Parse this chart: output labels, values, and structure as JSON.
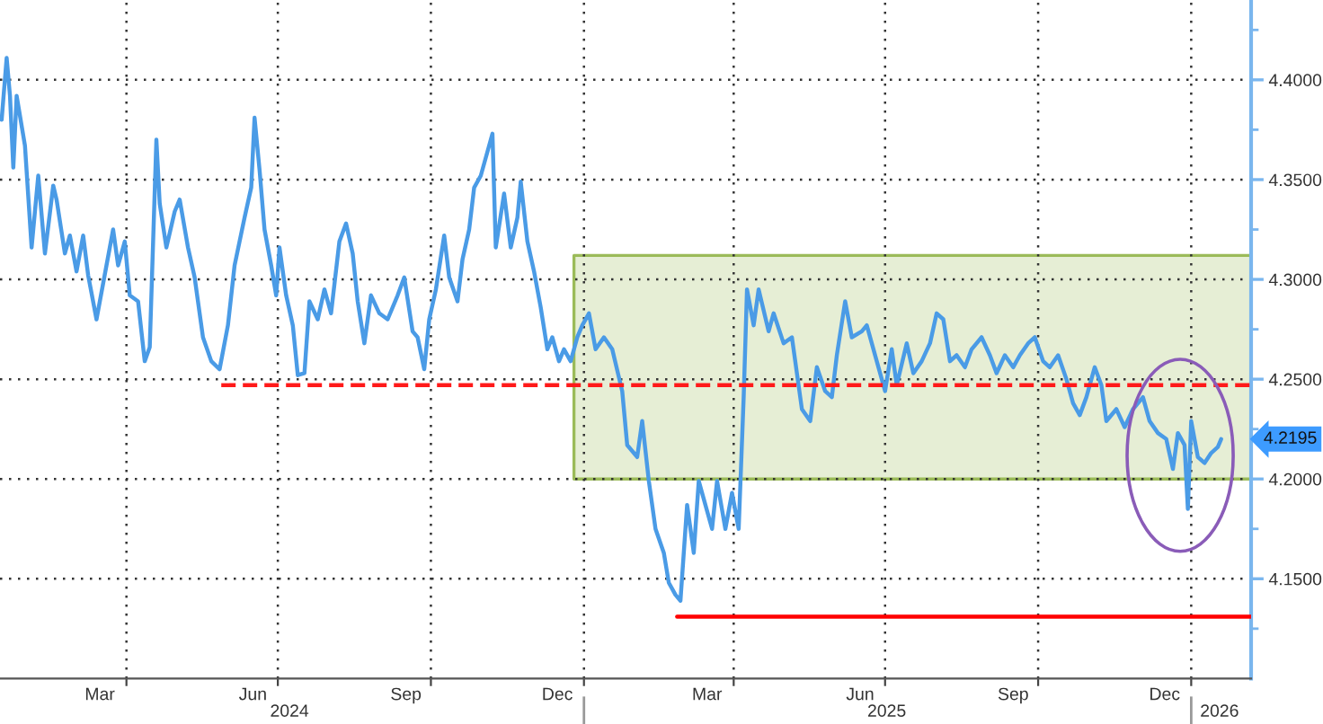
{
  "chart_data": {
    "type": "line",
    "xlim": [
      "2024-01-16",
      "2026-02-06"
    ],
    "xticks": [
      {
        "value": "2024-04-01",
        "label": null
      },
      {
        "value": "2024-07-01",
        "label": null
      },
      {
        "value": "2024-10-01",
        "label": null
      },
      {
        "value": "2025-01-01",
        "label": null
      },
      {
        "value": "2025-04-01",
        "label": null
      },
      {
        "value": "2025-07-01",
        "label": null
      },
      {
        "value": "2025-10-01",
        "label": null
      },
      {
        "value": "2026-01-01",
        "label": null
      },
      {
        "value": "2024-03-16",
        "label": "Mar"
      },
      {
        "value": "2024-06-16",
        "label": "Jun"
      },
      {
        "value": "2024-09-16",
        "label": "Sep"
      },
      {
        "value": "2024-12-16",
        "label": "Dec"
      },
      {
        "value": "2025-03-16",
        "label": "Mar"
      },
      {
        "value": "2025-06-16",
        "label": "Jun"
      },
      {
        "value": "2025-09-16",
        "label": "Sep"
      },
      {
        "value": "2025-12-16",
        "label": "Dec"
      }
    ],
    "x2lim": [
      "2024-01-16",
      "2026-02-06"
    ],
    "x2ticks": [
      {
        "value": "2025-01-01",
        "label": null
      },
      {
        "value": "2026-01-01",
        "label": null
      },
      {
        "value": "2024-07-08",
        "label": "2024"
      },
      {
        "value": "2025-07-02",
        "label": "2025"
      },
      {
        "value": "2026-01-18",
        "label": "2026"
      }
    ],
    "ylim": [
      4.1,
      4.44
    ],
    "yticks": [
      {
        "value": 4.15,
        "label": "4.1500"
      },
      {
        "value": 4.2,
        "label": "4.2000"
      },
      {
        "value": 4.25,
        "label": "4.2500"
      },
      {
        "value": 4.3,
        "label": "4.3000"
      },
      {
        "value": 4.35,
        "label": "4.3500"
      },
      {
        "value": 4.4,
        "label": "4.4000"
      },
      {
        "value": 4.125,
        "label": null
      },
      {
        "value": 4.175,
        "label": null
      },
      {
        "value": 4.225,
        "label": null
      },
      {
        "value": 4.275,
        "label": null
      },
      {
        "value": 4.325,
        "label": null
      },
      {
        "value": 4.375,
        "label": null
      },
      {
        "value": 4.425,
        "label": null
      }
    ],
    "grid": true,
    "annotations": [
      "4.2195"
    ],
    "series": [
      {
        "type": "line",
        "color": "#9bbb59",
        "x": [
          "2024-12-26",
          "2026-02-06"
        ],
        "values": [
          null,
          null
        ],
        "lower": [
          4.2,
          4.2
        ],
        "upper": [
          4.312,
          4.312
        ]
      },
      {
        "color": "#4a9be6",
        "x": [
          "2024-01-17",
          "2024-01-20",
          "2024-01-22",
          "2024-01-24",
          "2024-01-26",
          "2024-01-31",
          "2024-02-04",
          "2024-02-08",
          "2024-02-12",
          "2024-02-17",
          "2024-02-19",
          "2024-02-24",
          "2024-02-27",
          "2024-03-02",
          "2024-03-06",
          "2024-03-09",
          "2024-03-14",
          "2024-03-18",
          "2024-03-24",
          "2024-03-27",
          "2024-03-31",
          "2024-04-03",
          "2024-04-08",
          "2024-04-12",
          "2024-04-15",
          "2024-04-19",
          "2024-04-21",
          "2024-04-25",
          "2024-04-30",
          "2024-05-03",
          "2024-05-08",
          "2024-05-12",
          "2024-05-17",
          "2024-05-22",
          "2024-05-27",
          "2024-06-01",
          "2024-06-05",
          "2024-06-11",
          "2024-06-15",
          "2024-06-17",
          "2024-06-20",
          "2024-06-23",
          "2024-06-27",
          "2024-06-30",
          "2024-07-02",
          "2024-07-06",
          "2024-07-10",
          "2024-07-13",
          "2024-07-17",
          "2024-07-20",
          "2024-07-25",
          "2024-07-29",
          "2024-08-02",
          "2024-08-07",
          "2024-08-11",
          "2024-08-15",
          "2024-08-18",
          "2024-08-22",
          "2024-08-26",
          "2024-08-31",
          "2024-09-05",
          "2024-09-11",
          "2024-09-15",
          "2024-09-20",
          "2024-09-23",
          "2024-09-27",
          "2024-09-30",
          "2024-10-04",
          "2024-10-09",
          "2024-10-12",
          "2024-10-17",
          "2024-10-20",
          "2024-10-24",
          "2024-10-27",
          "2024-10-31",
          "2024-11-03",
          "2024-11-07",
          "2024-11-09",
          "2024-11-14",
          "2024-11-18",
          "2024-11-22",
          "2024-11-24",
          "2024-11-28",
          "2024-12-02",
          "2024-12-06",
          "2024-12-10",
          "2024-12-13",
          "2024-12-17",
          "2024-12-20",
          "2024-12-24",
          "2024-12-28",
          "2024-12-31",
          "2025-01-04",
          "2025-01-08",
          "2025-01-13",
          "2025-01-18",
          "2025-01-24",
          "2025-01-27",
          "2025-02-02",
          "2025-02-05",
          "2025-02-09",
          "2025-02-13",
          "2025-02-18",
          "2025-02-21",
          "2025-02-25",
          "2025-02-28",
          "2025-03-04",
          "2025-03-08",
          "2025-03-11",
          "2025-03-15",
          "2025-03-19",
          "2025-03-22",
          "2025-03-27",
          "2025-03-31",
          "2025-04-04",
          "2025-04-07",
          "2025-04-09",
          "2025-04-13",
          "2025-04-16",
          "2025-04-22",
          "2025-04-25",
          "2025-05-01",
          "2025-05-06",
          "2025-05-12",
          "2025-05-17",
          "2025-05-21",
          "2025-05-26",
          "2025-05-30",
          "2025-06-02",
          "2025-06-07",
          "2025-06-11",
          "2025-06-17",
          "2025-06-20",
          "2025-06-26",
          "2025-07-01",
          "2025-07-05",
          "2025-07-08",
          "2025-07-14",
          "2025-07-18",
          "2025-07-23",
          "2025-07-28",
          "2025-08-01",
          "2025-08-05",
          "2025-08-09",
          "2025-08-13",
          "2025-08-18",
          "2025-08-22",
          "2025-08-28",
          "2025-09-02",
          "2025-09-06",
          "2025-09-11",
          "2025-09-16",
          "2025-09-20",
          "2025-09-25",
          "2025-09-29",
          "2025-10-04",
          "2025-10-08",
          "2025-10-13",
          "2025-10-18",
          "2025-10-22",
          "2025-10-26",
          "2025-10-30",
          "2025-11-04",
          "2025-11-08",
          "2025-11-11",
          "2025-11-17",
          "2025-11-22",
          "2025-11-27",
          "2025-12-03",
          "2025-12-07",
          "2025-12-12",
          "2025-12-17",
          "2025-12-21",
          "2025-12-24",
          "2025-12-28",
          "2025-12-30",
          "2026-01-01",
          "2026-01-05",
          "2026-01-09",
          "2026-01-13",
          "2026-01-17",
          "2026-01-19"
        ],
        "values": [
          4.38,
          4.411,
          4.392,
          4.356,
          4.392,
          4.367,
          4.316,
          4.352,
          4.313,
          4.347,
          4.34,
          4.313,
          4.322,
          4.304,
          4.322,
          4.302,
          4.28,
          4.298,
          4.325,
          4.307,
          4.319,
          4.292,
          4.289,
          4.259,
          4.266,
          4.37,
          4.338,
          4.316,
          4.334,
          4.34,
          4.316,
          4.301,
          4.271,
          4.259,
          4.255,
          4.277,
          4.307,
          4.331,
          4.346,
          4.381,
          4.355,
          4.325,
          4.307,
          4.292,
          4.316,
          4.292,
          4.277,
          4.252,
          4.253,
          4.289,
          4.28,
          4.295,
          4.283,
          4.319,
          4.328,
          4.313,
          4.289,
          4.268,
          4.292,
          4.283,
          4.28,
          4.292,
          4.301,
          4.274,
          4.271,
          4.255,
          4.28,
          4.295,
          4.322,
          4.301,
          4.289,
          4.31,
          4.325,
          4.346,
          4.352,
          4.361,
          4.373,
          4.316,
          4.343,
          4.316,
          4.331,
          4.349,
          4.319,
          4.304,
          4.286,
          4.265,
          4.271,
          4.259,
          4.265,
          4.259,
          4.271,
          4.277,
          4.283,
          4.265,
          4.271,
          4.265,
          4.244,
          4.217,
          4.211,
          4.229,
          4.199,
          4.175,
          4.163,
          4.148,
          4.142,
          4.139,
          4.187,
          4.163,
          4.199,
          4.187,
          4.175,
          4.199,
          4.175,
          4.193,
          4.175,
          4.241,
          4.295,
          4.277,
          4.295,
          4.274,
          4.283,
          4.268,
          4.271,
          4.235,
          4.229,
          4.256,
          4.244,
          4.241,
          4.262,
          4.289,
          4.271,
          4.274,
          4.277,
          4.259,
          4.244,
          4.265,
          4.247,
          4.268,
          4.253,
          4.259,
          4.268,
          4.283,
          4.28,
          4.259,
          4.262,
          4.256,
          4.265,
          4.271,
          4.262,
          4.253,
          4.262,
          4.256,
          4.262,
          4.268,
          4.271,
          4.259,
          4.256,
          4.262,
          4.25,
          4.238,
          4.232,
          4.241,
          4.256,
          4.247,
          4.229,
          4.235,
          4.226,
          4.235,
          4.241,
          4.229,
          4.223,
          4.22,
          4.205,
          4.223,
          4.217,
          4.185,
          4.229,
          4.211,
          4.208,
          4.213,
          4.216,
          4.22
        ]
      },
      {
        "type": "line",
        "color": "#ff1a1a",
        "line_style": "dashed",
        "x": [
          "2024-05-28",
          "2026-02-06"
        ],
        "values": [
          4.247,
          4.247
        ]
      },
      {
        "type": "line",
        "color": "#ff0000",
        "x": [
          "2025-02-26",
          "2026-02-06"
        ],
        "values": [
          4.131,
          4.131
        ]
      }
    ]
  }
}
